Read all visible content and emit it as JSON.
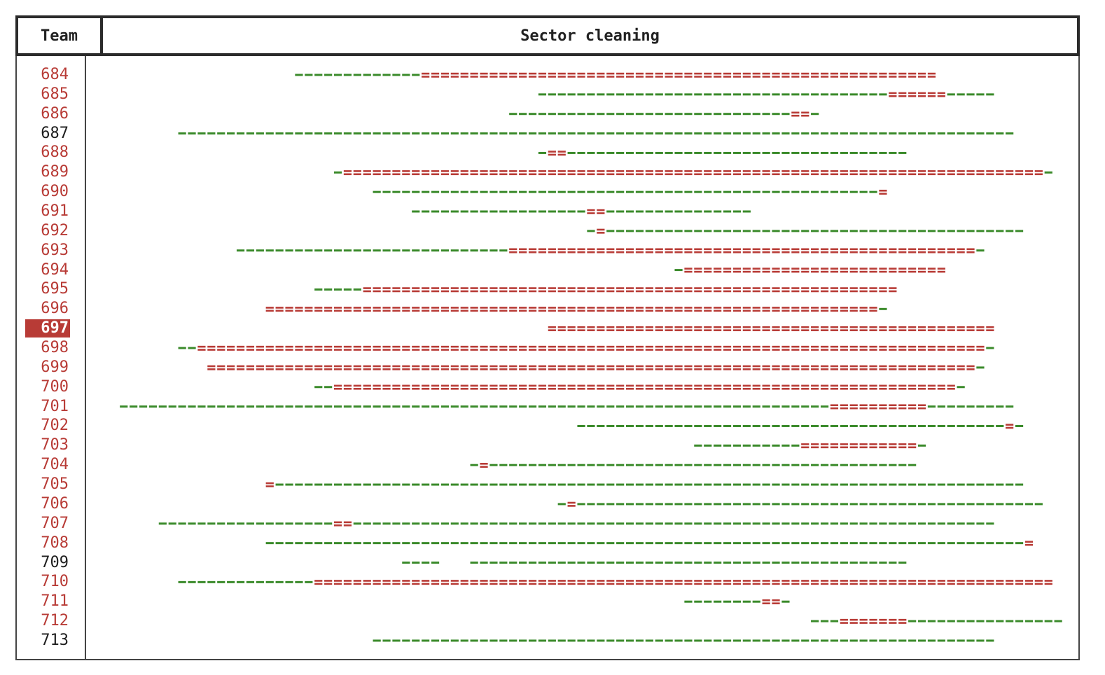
{
  "header": {
    "team_label": "Team",
    "title": "Sector cleaning"
  },
  "colors": {
    "assigned": "#3a8a2a",
    "overlap": "#b83b36",
    "label_red": "#b83b36",
    "label_black": "#1e1e1e",
    "highlight_bg": "#b83b36"
  },
  "chart_data": {
    "type": "interval_overlap",
    "x_unit": "sector position (1 character cell per unit)",
    "rows": [
      {
        "team": "684",
        "status": "overlap",
        "segments": [
          [
            0,
            13,
            "assigned"
          ],
          [
            13,
            66,
            "overlap"
          ]
        ]
      },
      {
        "team": "685",
        "status": "overlap",
        "segments": [
          [
            25,
            61,
            "assigned"
          ],
          [
            61,
            67,
            "overlap"
          ],
          [
            67,
            72,
            "assigned"
          ]
        ]
      },
      {
        "team": "686",
        "status": "overlap",
        "segments": [
          [
            22,
            51,
            "assigned"
          ],
          [
            51,
            53,
            "overlap"
          ],
          [
            53,
            54,
            "assigned"
          ]
        ]
      },
      {
        "team": "687",
        "status": "clear",
        "segments": [
          [
            -12,
            74,
            "assigned"
          ]
        ]
      },
      {
        "team": "688",
        "status": "overlap",
        "segments": [
          [
            25,
            26,
            "assigned"
          ],
          [
            26,
            28,
            "overlap"
          ],
          [
            28,
            63,
            "assigned"
          ]
        ]
      },
      {
        "team": "689",
        "status": "overlap",
        "segments": [
          [
            4,
            5,
            "assigned"
          ],
          [
            5,
            77,
            "overlap"
          ],
          [
            77,
            78,
            "assigned"
          ]
        ]
      },
      {
        "team": "690",
        "status": "overlap",
        "segments": [
          [
            8,
            60,
            "assigned"
          ],
          [
            60,
            61,
            "overlap"
          ]
        ]
      },
      {
        "team": "691",
        "status": "overlap",
        "segments": [
          [
            12,
            30,
            "assigned"
          ],
          [
            30,
            32,
            "overlap"
          ],
          [
            32,
            47,
            "assigned"
          ]
        ]
      },
      {
        "team": "692",
        "status": "overlap",
        "segments": [
          [
            30,
            31,
            "assigned"
          ],
          [
            31,
            32,
            "overlap"
          ],
          [
            32,
            75,
            "assigned"
          ]
        ]
      },
      {
        "team": "693",
        "status": "overlap",
        "segments": [
          [
            -6,
            22,
            "assigned"
          ],
          [
            22,
            70,
            "overlap"
          ],
          [
            70,
            71,
            "assigned"
          ]
        ]
      },
      {
        "team": "694",
        "status": "overlap",
        "segments": [
          [
            39,
            40,
            "assigned"
          ],
          [
            40,
            67,
            "overlap"
          ]
        ]
      },
      {
        "team": "695",
        "status": "overlap",
        "segments": [
          [
            2,
            7,
            "assigned"
          ],
          [
            7,
            62,
            "overlap"
          ]
        ]
      },
      {
        "team": "696",
        "status": "overlap",
        "segments": [
          [
            -3,
            60,
            "overlap"
          ],
          [
            60,
            61,
            "assigned"
          ]
        ]
      },
      {
        "team": "697",
        "status": "overlap",
        "highlighted": true,
        "segments": [
          [
            26,
            72,
            "overlap"
          ]
        ]
      },
      {
        "team": "698",
        "status": "overlap",
        "segments": [
          [
            -12,
            -10,
            "assigned"
          ],
          [
            -10,
            71,
            "overlap"
          ],
          [
            71,
            72,
            "assigned"
          ]
        ]
      },
      {
        "team": "699",
        "status": "overlap",
        "segments": [
          [
            -9,
            70,
            "overlap"
          ],
          [
            70,
            71,
            "assigned"
          ]
        ]
      },
      {
        "team": "700",
        "status": "overlap",
        "segments": [
          [
            2,
            4,
            "assigned"
          ],
          [
            4,
            68,
            "overlap"
          ],
          [
            68,
            69,
            "assigned"
          ]
        ]
      },
      {
        "team": "701",
        "status": "overlap",
        "segments": [
          [
            -18,
            55,
            "assigned"
          ],
          [
            55,
            65,
            "overlap"
          ],
          [
            65,
            74,
            "assigned"
          ]
        ]
      },
      {
        "team": "702",
        "status": "overlap",
        "segments": [
          [
            29,
            73,
            "assigned"
          ],
          [
            73,
            74,
            "overlap"
          ],
          [
            74,
            75,
            "assigned"
          ]
        ]
      },
      {
        "team": "703",
        "status": "overlap",
        "segments": [
          [
            41,
            52,
            "assigned"
          ],
          [
            52,
            64,
            "overlap"
          ],
          [
            64,
            65,
            "assigned"
          ]
        ]
      },
      {
        "team": "704",
        "status": "overlap",
        "segments": [
          [
            18,
            19,
            "assigned"
          ],
          [
            19,
            20,
            "overlap"
          ],
          [
            20,
            64,
            "assigned"
          ]
        ]
      },
      {
        "team": "705",
        "status": "overlap",
        "segments": [
          [
            -3,
            -2,
            "overlap"
          ],
          [
            -2,
            75,
            "assigned"
          ]
        ]
      },
      {
        "team": "706",
        "status": "overlap",
        "segments": [
          [
            27,
            28,
            "assigned"
          ],
          [
            28,
            29,
            "overlap"
          ],
          [
            29,
            77,
            "assigned"
          ]
        ]
      },
      {
        "team": "707",
        "status": "overlap",
        "segments": [
          [
            -14,
            4,
            "assigned"
          ],
          [
            4,
            6,
            "overlap"
          ],
          [
            6,
            72,
            "assigned"
          ]
        ]
      },
      {
        "team": "708",
        "status": "overlap",
        "segments": [
          [
            -3,
            75,
            "assigned"
          ],
          [
            75,
            76,
            "overlap"
          ]
        ]
      },
      {
        "team": "709",
        "status": "clear",
        "segments": [
          [
            11,
            15,
            "assigned"
          ],
          [
            18,
            63,
            "assigned"
          ]
        ]
      },
      {
        "team": "710",
        "status": "overlap",
        "segments": [
          [
            -12,
            2,
            "assigned"
          ],
          [
            2,
            78,
            "overlap"
          ]
        ]
      },
      {
        "team": "711",
        "status": "overlap",
        "segments": [
          [
            40,
            48,
            "assigned"
          ],
          [
            48,
            50,
            "overlap"
          ],
          [
            50,
            51,
            "assigned"
          ]
        ]
      },
      {
        "team": "712",
        "status": "overlap",
        "segments": [
          [
            53,
            56,
            "assigned"
          ],
          [
            56,
            63,
            "overlap"
          ],
          [
            63,
            79,
            "assigned"
          ]
        ]
      },
      {
        "team": "713",
        "status": "clear",
        "segments": [
          [
            8,
            72,
            "assigned"
          ]
        ]
      }
    ]
  }
}
